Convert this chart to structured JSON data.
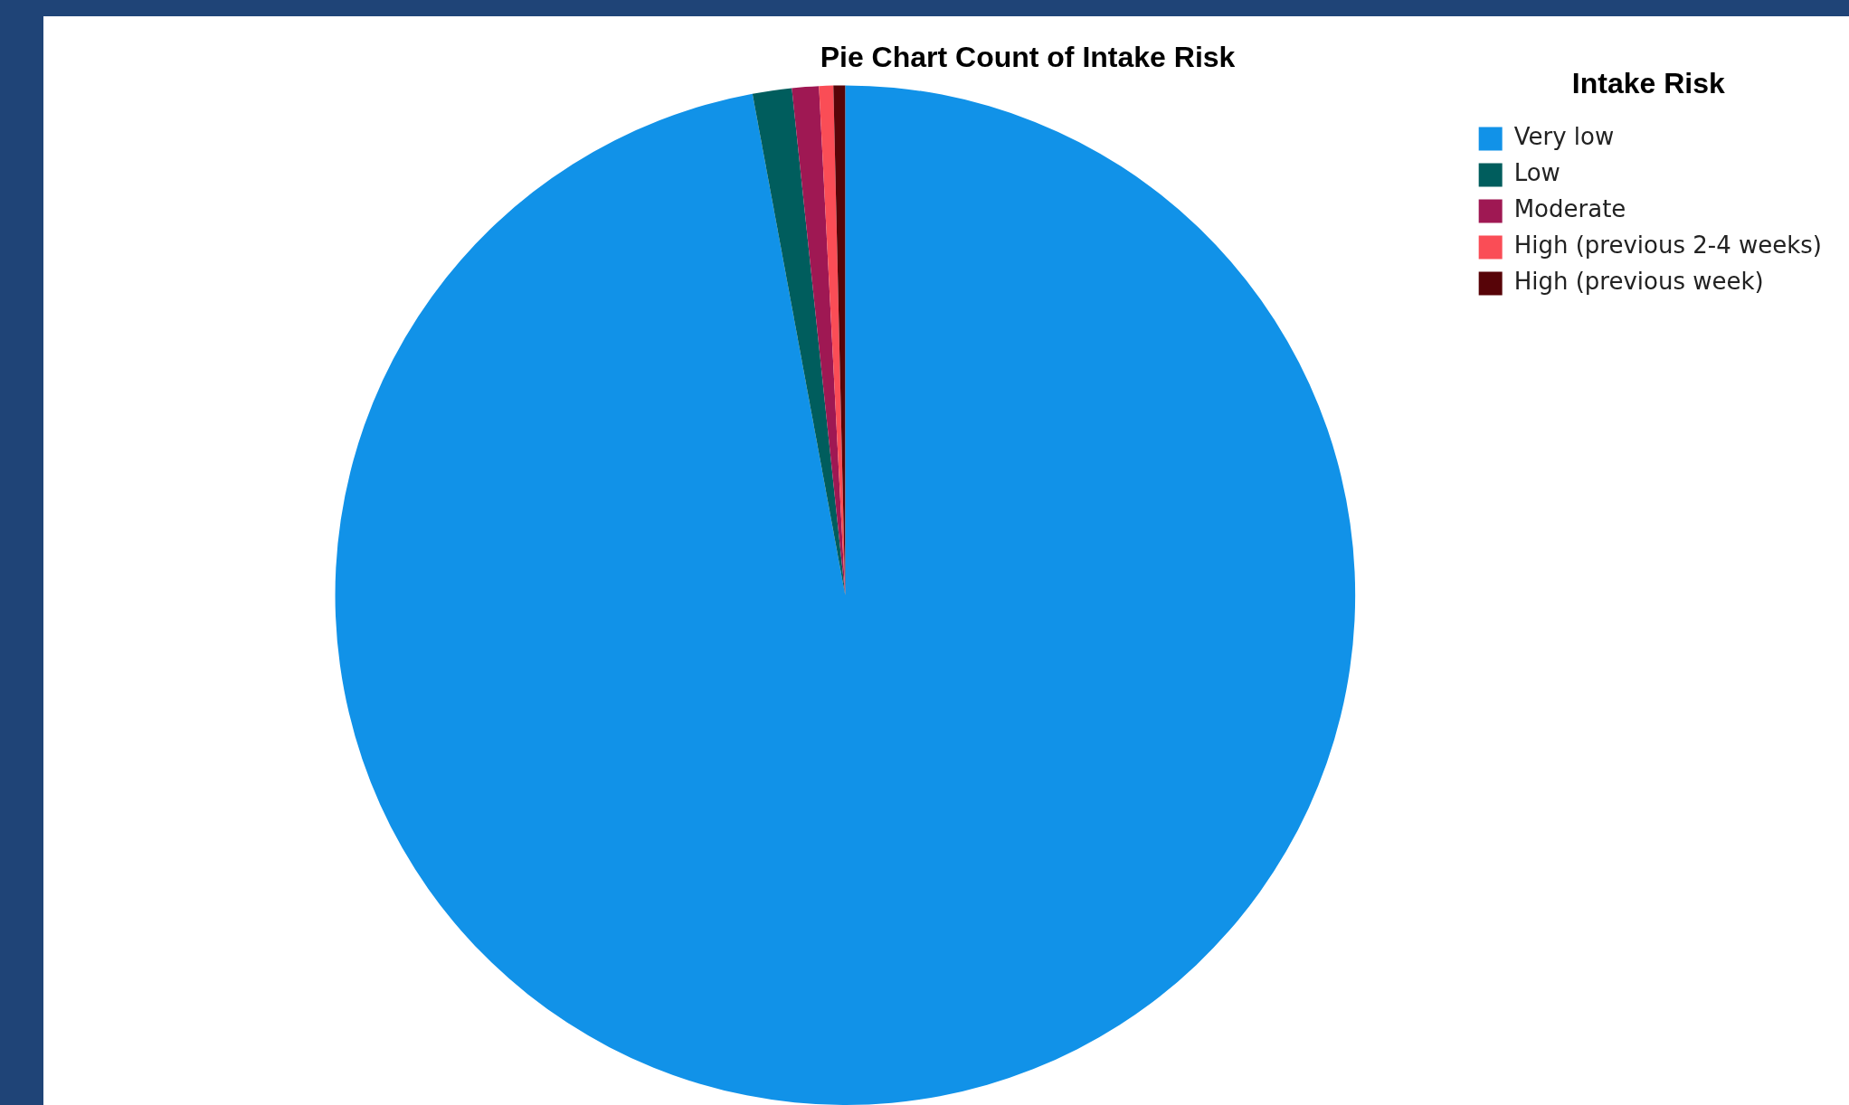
{
  "chart_data": {
    "type": "pie",
    "title": "Pie Chart Count of Intake Risk",
    "legend_title": "Intake Risk",
    "legend": "top right",
    "categories": [
      "Very low",
      "Low",
      "Moderate",
      "High (previous 2-4 weeks)",
      "High (previous week)"
    ],
    "values": [
      97.09,
      1.24,
      0.85,
      0.45,
      0.37
    ],
    "colors": [
      "#1192e8",
      "#005d5d",
      "#9f1853",
      "#fa4d56",
      "#570408"
    ]
  }
}
